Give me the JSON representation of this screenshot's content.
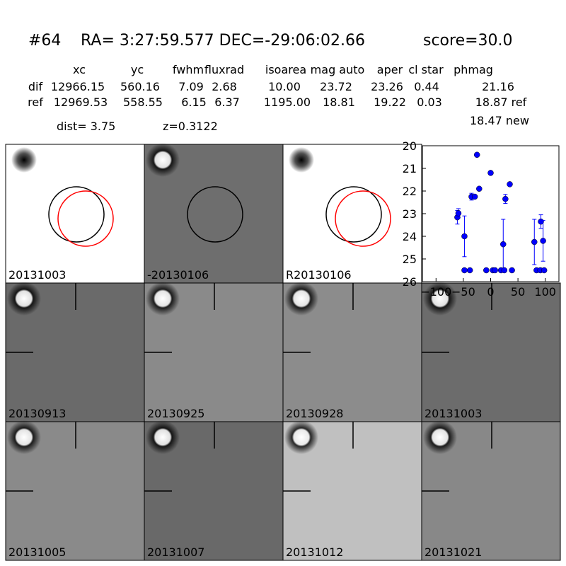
{
  "header": {
    "id": "#64",
    "coords": "RA= 3:27:59.577 DEC=-29:06:02.66",
    "score": "score=30.0"
  },
  "table": {
    "columns": [
      "xc",
      "yc",
      "fwhm",
      "fluxrad",
      "isoarea",
      "mag auto",
      "aper",
      "cl star",
      "phmag"
    ],
    "rows": [
      [
        "dif",
        "12966.15",
        "560.16",
        "7.09",
        "2.68",
        "10.00",
        "23.72",
        "23.26",
        "0.44",
        "21.16"
      ],
      [
        "ref",
        "12969.53",
        "558.55",
        "6.15",
        "6.37",
        "1195.00",
        "18.81",
        "19.22",
        "0.03",
        "18.87 ref"
      ]
    ],
    "extra": "18.47 new"
  },
  "dist": "dist=  3.75",
  "redshift": "z=0.3122",
  "panels": [
    {
      "label": "20131003",
      "label_color": "#000000"
    },
    {
      "label": "-20130106",
      "label_color": "#000000"
    },
    {
      "label": "R20130106",
      "label_color": "#000000"
    },
    {
      "label": "20130913",
      "label_color": "#000000"
    },
    {
      "label": "20130925",
      "label_color": "#000000"
    },
    {
      "label": "20130928",
      "label_color": "#000000"
    },
    {
      "label": "20131003",
      "label_color": "#ff0000"
    },
    {
      "label": "20131005",
      "label_color": "#000000"
    },
    {
      "label": "20131007",
      "label_color": "#000000"
    },
    {
      "label": "20131012",
      "label_color": "#000000"
    },
    {
      "label": "20131021",
      "label_color": "#000000"
    }
  ],
  "chart_data": {
    "type": "scatter",
    "color": "#0000ff",
    "x": [
      -61,
      -59,
      -48,
      -48,
      -38,
      -35,
      -29,
      -25,
      -21,
      -8,
      0,
      4,
      8,
      19,
      23,
      25,
      27,
      35,
      39,
      80,
      84,
      91,
      92,
      96,
      98
    ],
    "values": [
      23.16,
      22.98,
      24.0,
      25.5,
      25.5,
      22.25,
      22.25,
      20.4,
      21.9,
      25.5,
      21.2,
      25.5,
      25.5,
      25.5,
      24.35,
      25.5,
      22.35,
      21.7,
      25.5,
      24.25,
      25.5,
      25.5,
      23.35,
      24.2,
      25.5
    ],
    "errors": [
      0.3,
      0.2,
      0.9,
      null,
      null,
      0.15,
      null,
      null,
      null,
      null,
      null,
      null,
      null,
      null,
      1.1,
      null,
      0.2,
      null,
      null,
      1.0,
      null,
      null,
      0.3,
      0.9,
      null
    ],
    "xlim": [
      -125,
      125
    ],
    "ylim": [
      26,
      20
    ],
    "xticks": [
      {
        "value": -100,
        "label": "−100"
      },
      {
        "value": -50,
        "label": "−50"
      },
      0,
      50,
      100
    ],
    "yticks": [
      20,
      21,
      22,
      23,
      24,
      25,
      26
    ]
  }
}
